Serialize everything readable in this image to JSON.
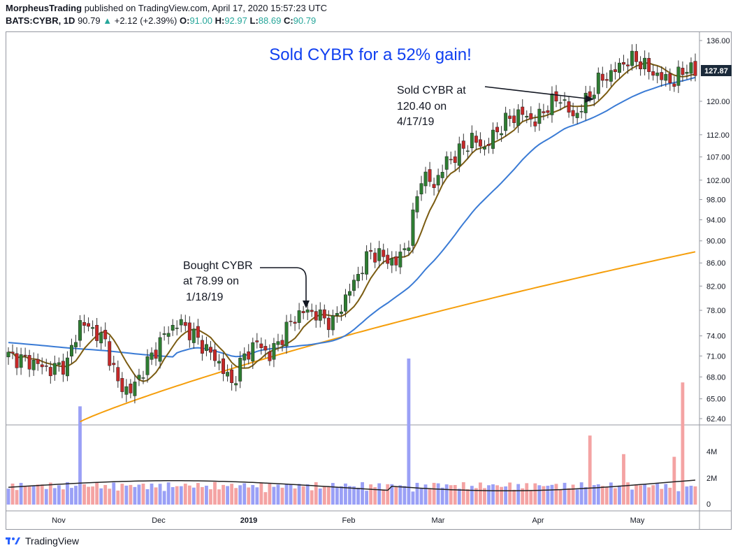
{
  "header": {
    "author": "MorpheusTrading",
    "published": "published on TradingView.com, April 17, 2020 15:57:23 UTC",
    "symbol": "BATS:CYBR, 1D",
    "last": "90.79",
    "change": "+2.12 (+2.39%)",
    "o_label": "O:",
    "o_value": "91.00",
    "h_label": "H:",
    "h_value": "92.97",
    "l_label": "L:",
    "l_value": "88.69",
    "c_label": "C:",
    "c_value": "90.79"
  },
  "footer": {
    "brand": "TradingView"
  },
  "colors": {
    "up": "#2e7d32",
    "down": "#c62828",
    "ema_short": "#7b5c12",
    "sma_mid": "#3a7bd5",
    "sma_long": "#f59e0b",
    "title": "#0f3ff0",
    "vol_up": "#9aa0f6",
    "vol_down": "#f4a3a3"
  },
  "chart_data": {
    "type": "candlestick",
    "title": "Sold CYBR for a 52% gain!",
    "price_axis": {
      "ticks": [
        136.0,
        120.0,
        112.0,
        107.0,
        102.0,
        98.0,
        94.0,
        90.0,
        86.0,
        82.0,
        78.0,
        74.0,
        71.0,
        68.0,
        65.0,
        62.4
      ],
      "current_price": "127.87",
      "scale": "log"
    },
    "volume_axis": {
      "ticks": [
        "4M",
        "2M",
        "0"
      ]
    },
    "x_axis": {
      "labels": [
        "Nov",
        "Dec",
        "2019",
        "Feb",
        "Mar",
        "Apr",
        "May"
      ]
    },
    "annotations": {
      "buy": [
        "Bought CYBR",
        "at 78.99 on",
        "1/18/19"
      ],
      "sell": [
        "Sold CYBR at",
        "120.40 on",
        "4/17/19"
      ]
    }
  }
}
